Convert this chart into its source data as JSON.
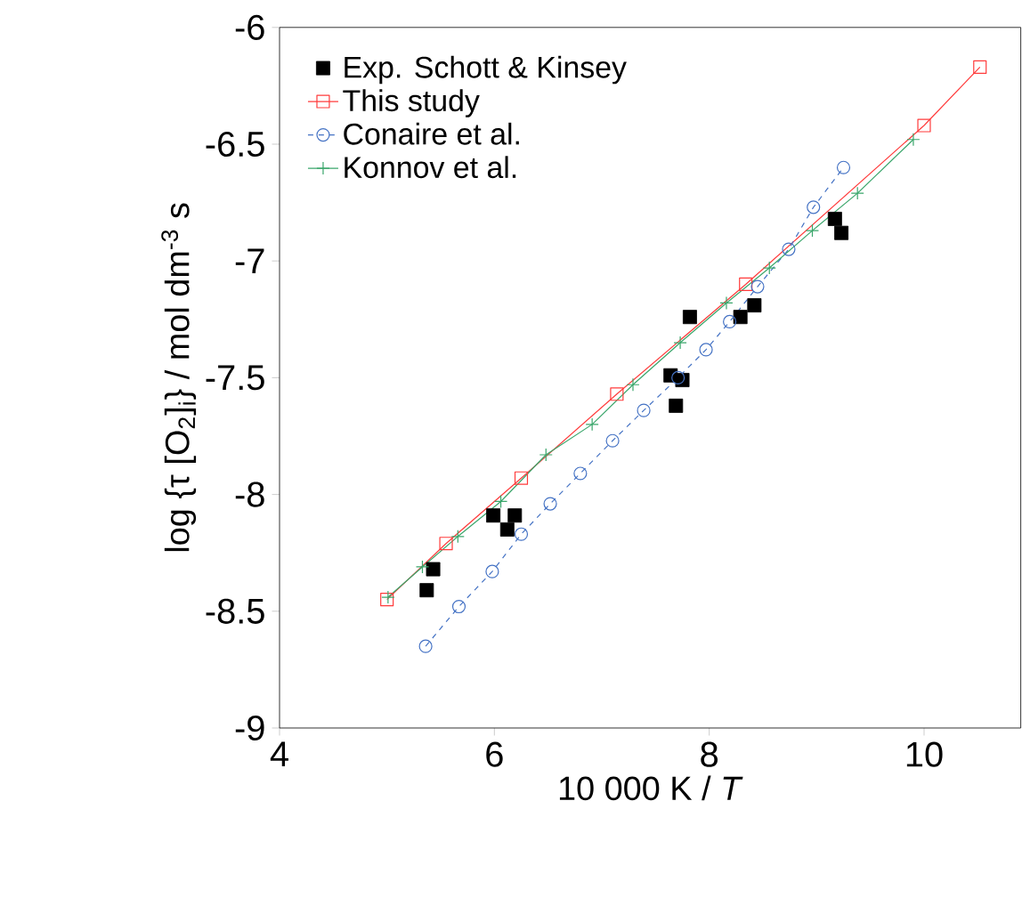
{
  "chart_data": {
    "type": "line",
    "xlabel": "10 000 K / *T*",
    "ylabel": "log {τ [O$_{2}$]$_{i}$} / mol dm$^{-3}$ s",
    "xlim": [
      4,
      10.9
    ],
    "ylim": [
      -9,
      -6
    ],
    "xticks": [
      4,
      6,
      8,
      10
    ],
    "yticks": [
      -9,
      -8.5,
      -8,
      -7.5,
      -7,
      -6.5,
      -6
    ],
    "legend": "top left",
    "grid": false,
    "series": [
      {
        "name": "Exp. Schott & Kinsey",
        "type": "scatter",
        "color": "#000000",
        "marker": "square",
        "x": [
          5.37,
          5.43,
          5.99,
          6.19,
          6.12,
          7.82,
          7.64,
          7.75,
          7.69,
          8.29,
          8.42,
          9.17,
          9.23
        ],
        "values": [
          -8.41,
          -8.32,
          -8.09,
          -8.09,
          -8.15,
          -7.24,
          -7.49,
          -7.51,
          -7.62,
          -7.24,
          -7.19,
          -6.82,
          -6.88
        ]
      },
      {
        "name": "This study",
        "color": "#ff3b3b",
        "marker": "square",
        "line_style": "solid",
        "x": [
          5.0,
          5.55,
          6.25,
          7.14,
          8.34,
          10.0,
          10.52
        ],
        "values": [
          -8.45,
          -8.21,
          -7.93,
          -7.57,
          -7.1,
          -6.42,
          -6.17
        ]
      },
      {
        "name": "Conaire et al.",
        "color": "#4472c4",
        "marker": "circle",
        "line_style": "dashed",
        "x": [
          5.36,
          5.67,
          5.98,
          6.25,
          6.52,
          6.8,
          7.1,
          7.39,
          7.71,
          7.97,
          8.19,
          8.45,
          8.74,
          8.97,
          9.25
        ],
        "values": [
          -8.65,
          -8.48,
          -8.33,
          -8.17,
          -8.04,
          -7.91,
          -7.77,
          -7.64,
          -7.5,
          -7.38,
          -7.26,
          -7.11,
          -6.95,
          -6.77,
          -6.6
        ]
      },
      {
        "name": "Konnov et al.",
        "color": "#3aa66b",
        "marker": "cross",
        "line_style": "solid",
        "x": [
          5.01,
          5.33,
          5.66,
          6.06,
          6.48,
          6.91,
          7.29,
          7.73,
          8.16,
          8.56,
          8.96,
          9.38,
          9.9
        ],
        "values": [
          -8.44,
          -8.31,
          -8.18,
          -8.03,
          -7.83,
          -7.7,
          -7.53,
          -7.35,
          -7.18,
          -7.03,
          -6.87,
          -6.71,
          -6.48
        ]
      }
    ]
  }
}
